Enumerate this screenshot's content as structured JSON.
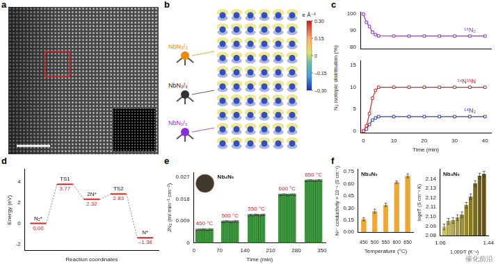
{
  "panel_labels": [
    "a",
    "b",
    "c",
    "d",
    "e",
    "f"
  ],
  "watermark": "催化前沿",
  "panel_b": {
    "labels": [
      {
        "text": "NbN₂/₃",
        "color": "#f08a00"
      },
      {
        "text": "NbN₂/₃",
        "color": "#222222"
      },
      {
        "text": "NbN₁/₃",
        "color": "#8a2be2"
      }
    ],
    "colorbar": {
      "title": "e Å⁻³",
      "range": [
        -0.3,
        0.3
      ],
      "ticks": [
        {
          "value": 0.3,
          "label": "0.30"
        },
        {
          "value": 0.15,
          "label": "0.15"
        },
        0,
        {
          "value": -0.15,
          "label": "–0.15"
        },
        {
          "value": -0.3,
          "label": "–0.30"
        }
      ]
    }
  },
  "chart_data": [
    {
      "type": "line",
      "x": [
        0,
        1,
        2,
        3,
        4,
        5,
        10,
        15,
        20,
        25,
        30,
        35,
        40
      ],
      "xlim": [
        -1,
        42
      ],
      "ylim": [
        79,
        101
      ],
      "yticks": [
        80,
        90,
        100
      ],
      "tick_labels": "y",
      "series": [
        {
          "name": "¹⁵N₂",
          "color": "#9b30d0",
          "marker": "square",
          "values": [
            100,
            95,
            92.5,
            89,
            87.5,
            86.8,
            86.7,
            86.7,
            86.7,
            86.7,
            86.7,
            86.7,
            86.7
          ]
        }
      ]
    },
    {
      "type": "line",
      "x": [
        0,
        1,
        2,
        3,
        4,
        5,
        10,
        15,
        20,
        25,
        30,
        35,
        40
      ],
      "xlim": [
        -1,
        42
      ],
      "xticks": [
        0,
        10,
        20,
        30,
        40
      ],
      "xlabel": "Time (min)",
      "ylabel": "N₂ isotopic distribution (%)",
      "ylim": [
        -0.5,
        16
      ],
      "yticks": [
        0,
        5,
        10,
        15
      ],
      "series": [
        {
          "name": "¹⁴N¹⁵N",
          "color": "#e02028",
          "marker": "square",
          "values": [
            0,
            1.2,
            4,
            7.5,
            9.3,
            10,
            10,
            10,
            10,
            10,
            10,
            10,
            10
          ]
        },
        {
          "name": "¹⁴N₂",
          "color": "#2a3fbf",
          "marker": "square",
          "values": [
            0,
            0.5,
            1.5,
            2.5,
            3,
            3.3,
            3.3,
            3.3,
            3.3,
            3.3,
            3.3,
            3.3,
            3.3
          ]
        }
      ]
    },
    {
      "type": "line",
      "categories": [
        "N₂*",
        "TS1",
        "2N*",
        "TS2",
        "N*"
      ],
      "values": [
        0,
        3.77,
        2.32,
        2.83,
        -1.38
      ],
      "value_labels": [
        "0.00",
        "3.77",
        "2.32",
        "2.83",
        "–1.38"
      ],
      "data_labels": true,
      "ylim": [
        -2.6,
        5.2
      ],
      "yticks": [
        -2,
        0,
        2,
        4
      ],
      "ylabel": "Energy (eV)",
      "xlabel": "Reaction coordinates",
      "color": "#e02020",
      "tick_labels": "y"
    },
    {
      "type": "bar",
      "xlim": [
        0,
        360
      ],
      "xticks": [
        0,
        70,
        140,
        210,
        280,
        350
      ],
      "ylim": [
        0,
        0.029
      ],
      "yticks": [
        0,
        0.009,
        0.018,
        0.027
      ],
      "xlabel": "Time (min)",
      "ylabel": "JN₂ (ml min⁻¹ cm⁻²)",
      "color": "#3c9a3c",
      "annotations": [
        "Nb₄N₅"
      ],
      "series": [
        {
          "name": "450 °C",
          "x": [
            8,
            14,
            20,
            26,
            32,
            38,
            44,
            50
          ],
          "values": [
            0.0054,
            0.0055,
            0.0055,
            0.0056,
            0.0055,
            0.0054,
            0.0056,
            0.0055
          ],
          "errors": [
            0.0003,
            0.0003,
            0.0003,
            0.0003,
            0.0003,
            0.0003,
            0.0003,
            0.0003
          ]
        },
        {
          "name": "500 °C",
          "x": [
            78,
            84,
            90,
            96,
            102,
            108,
            114,
            120
          ],
          "values": [
            0.0087,
            0.0088,
            0.0089,
            0.0088,
            0.0087,
            0.0088,
            0.0089,
            0.0088
          ],
          "errors": [
            0.0003,
            0.0003,
            0.0003,
            0.0003,
            0.0003,
            0.0003,
            0.0003,
            0.0003
          ]
        },
        {
          "name": "550 °C",
          "x": [
            150,
            156,
            162,
            168,
            174,
            180,
            186,
            192
          ],
          "values": [
            0.0114,
            0.0115,
            0.0114,
            0.0116,
            0.0115,
            0.0114,
            0.0115,
            0.0116
          ],
          "errors": [
            0.0003,
            0.0003,
            0.0003,
            0.0003,
            0.0003,
            0.0003,
            0.0003,
            0.0003
          ]
        },
        {
          "name": "600 °C",
          "x": [
            234,
            240,
            246,
            252,
            258,
            264,
            270,
            276
          ],
          "values": [
            0.0197,
            0.0198,
            0.0199,
            0.0198,
            0.0197,
            0.0198,
            0.0199,
            0.0198
          ],
          "errors": [
            0.0003,
            0.0003,
            0.0003,
            0.0003,
            0.0003,
            0.0003,
            0.0003,
            0.0003
          ]
        },
        {
          "name": "650 °C",
          "x": [
            306,
            312,
            318,
            324,
            330,
            336,
            342,
            348
          ],
          "values": [
            0.0255,
            0.0256,
            0.0257,
            0.0256,
            0.0255,
            0.0256,
            0.0257,
            0.0256
          ],
          "errors": [
            0.0003,
            0.0003,
            0.0003,
            0.0003,
            0.0003,
            0.0003,
            0.0003,
            0.0003
          ]
        }
      ]
    },
    {
      "type": "bar",
      "categories": [
        "450",
        "500",
        "550",
        "600",
        "650"
      ],
      "values": [
        0.16,
        0.26,
        0.34,
        0.62,
        0.7
      ],
      "errors": [
        0.02,
        0.025,
        0.02,
        0.015,
        0.025
      ],
      "color": "#f5a623",
      "ylim": [
        0,
        0.78
      ],
      "yticks": [
        {
          "value": 0,
          "label": "0.00"
        },
        0.15,
        {
          "value": 0.3,
          "label": "0.30"
        },
        0.45,
        {
          "value": 0.6,
          "label": "0.60"
        },
        0.75
      ],
      "xlabel": "Temperature (°C)",
      "ylabel": "N³⁻ conductivity × 10⁻³ (S cm⁻¹)",
      "annotations": [
        "Nb₄N₅"
      ]
    },
    {
      "type": "bar",
      "x": [
        1.09,
        1.125,
        1.16,
        1.195,
        1.23,
        1.265,
        1.3,
        1.335,
        1.37,
        1.405
      ],
      "values": [
        2.089,
        2.095,
        2.096,
        2.099,
        2.102,
        2.112,
        2.121,
        2.135,
        2.143,
        2.145
      ],
      "errors": [
        0.003,
        0.003,
        0.003,
        0.003,
        0.003,
        0.003,
        0.003,
        0.003,
        0.003,
        0.003
      ],
      "colors": [
        "#c9c060",
        "#bfb552",
        "#b5aa46",
        "#aa9e3c",
        "#a09232",
        "#958628",
        "#8a7a20",
        "#7e6d18",
        "#726012",
        "#66540c"
      ],
      "xlim": [
        1.06,
        1.44
      ],
      "xticks": [
        1.06,
        1.44
      ],
      "ylim": [
        2.08,
        2.15
      ],
      "yticks": [
        2.08,
        2.09,
        {
          "value": 2.1,
          "label": "2.10"
        },
        2.11,
        2.12,
        2.13,
        2.14
      ],
      "xlabel": "1,000/T (K⁻¹)",
      "ylabel": "logσT (S cm⁻¹ K)",
      "annotations": [
        "Nb₄N₅"
      ]
    }
  ]
}
